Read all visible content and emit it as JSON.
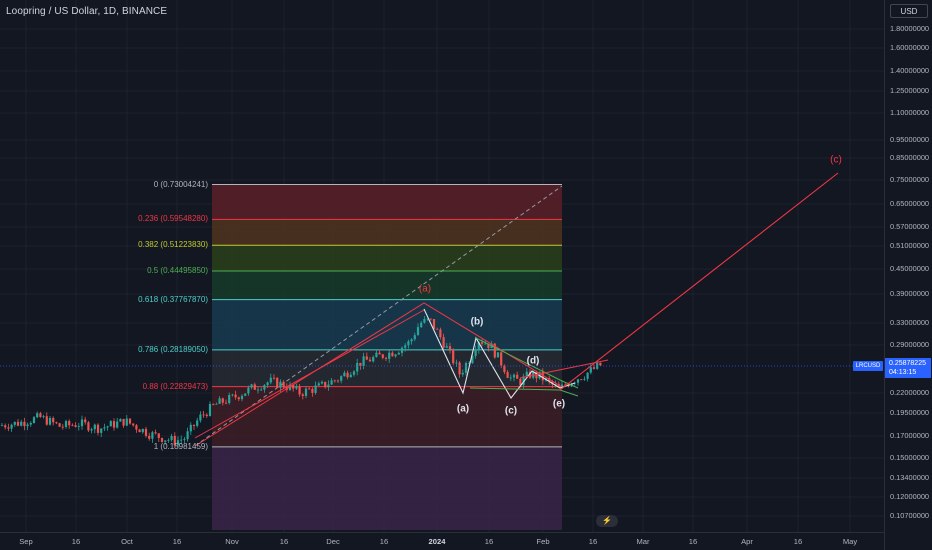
{
  "header": {
    "title": "Loopring / US Dollar, 1D, BINANCE"
  },
  "price_axis": {
    "currency": "USD",
    "ticks": [
      "1.80000000",
      "1.60000000",
      "1.40000000",
      "1.25000000",
      "1.10000000",
      "0.95000000",
      "0.85000000",
      "0.75000000",
      "0.65000000",
      "0.57000000",
      "0.51000000",
      "0.45000000",
      "0.39000000",
      "0.33000000",
      "0.29000000",
      "0.22000000",
      "0.19500000",
      "0.17000000",
      "0.15000000",
      "0.13400000",
      "0.12000000",
      "0.10700000"
    ],
    "symbol_tag": "LRCUSD",
    "last_price": "0.25878225",
    "countdown": "04:13:15"
  },
  "time_axis": {
    "labels": [
      {
        "text": "Sep",
        "bold": false
      },
      {
        "text": "16",
        "bold": false
      },
      {
        "text": "Oct",
        "bold": false
      },
      {
        "text": "16",
        "bold": false
      },
      {
        "text": "Nov",
        "bold": false
      },
      {
        "text": "16",
        "bold": false
      },
      {
        "text": "Dec",
        "bold": false
      },
      {
        "text": "16",
        "bold": false
      },
      {
        "text": "2024",
        "bold": true
      },
      {
        "text": "16",
        "bold": false
      },
      {
        "text": "Feb",
        "bold": false
      },
      {
        "text": "16",
        "bold": false
      },
      {
        "text": "Mar",
        "bold": false
      },
      {
        "text": "16",
        "bold": false
      },
      {
        "text": "Apr",
        "bold": false
      },
      {
        "text": "16",
        "bold": false
      },
      {
        "text": "May",
        "bold": false
      }
    ]
  },
  "fib_levels": [
    {
      "label": "0 (0.73004241)",
      "ratio": 0,
      "price": 0.73004241,
      "color": "#b2b5be",
      "fill": "#5b2027"
    },
    {
      "label": "0.236 (0.59548280)",
      "ratio": 0.236,
      "price": 0.5954828,
      "color": "#f23645",
      "fill": "#50341e"
    },
    {
      "label": "0.382 (0.51223830)",
      "ratio": 0.382,
      "price": 0.5122383,
      "color": "#c0ca33",
      "fill": "#2c3f1a"
    },
    {
      "label": "0.5 (0.44495850)",
      "ratio": 0.5,
      "price": 0.4449585,
      "color": "#4caf50",
      "fill": "#173b2a"
    },
    {
      "label": "0.618 (0.37767870)",
      "ratio": 0.618,
      "price": 0.3776787,
      "color": "#4dd0c8",
      "fill": "#173b4f"
    },
    {
      "label": "0.786 (0.28189050)",
      "ratio": 0.786,
      "price": 0.2818905,
      "color": "#4dd0c8",
      "fill": "#272a33"
    },
    {
      "label": "0.88 (0.22829473)",
      "ratio": 0.88,
      "price": 0.22829473,
      "color": "#f23645",
      "fill": "#3d1f26"
    },
    {
      "label": "1 (0.15981459)",
      "ratio": 1,
      "price": 0.15981459,
      "color": "#b2b5be",
      "fill": "#3a2447"
    }
  ],
  "waves": [
    {
      "label": "(a)",
      "color": "#f23645"
    },
    {
      "label": "(b)",
      "color": "#e0e3eb"
    },
    {
      "label": "(a)",
      "color": "#e0e3eb"
    },
    {
      "label": "(c)",
      "color": "#e0e3eb"
    },
    {
      "label": "(d)",
      "color": "#e0e3eb"
    },
    {
      "label": "(e)",
      "color": "#e0e3eb"
    },
    {
      "label": "(c)",
      "color": "#f23645"
    }
  ],
  "colors": {
    "up": "#26a69a",
    "down": "#ef5350",
    "background": "#131722",
    "accent": "#2962ff"
  },
  "logo_icon": "tradingview-logo-icon"
}
